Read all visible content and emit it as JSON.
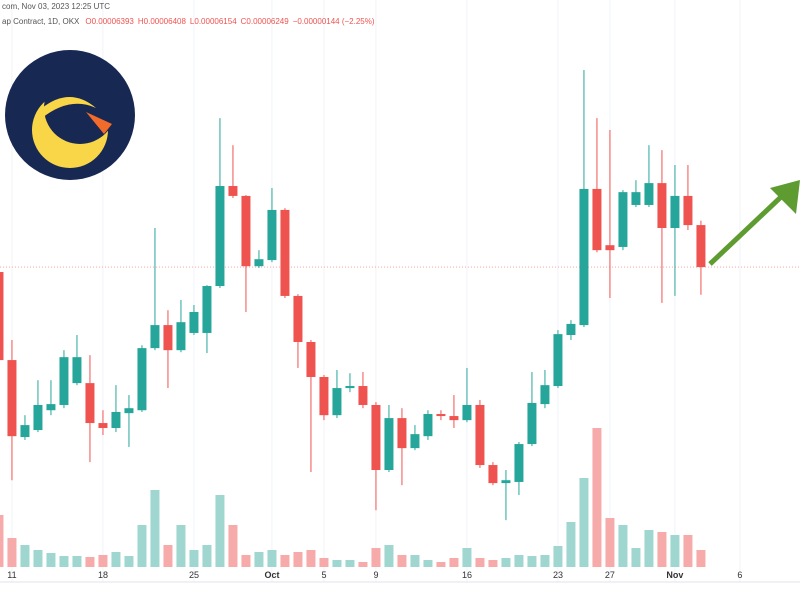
{
  "chart_data": {
    "type": "candlestick",
    "header_source": "com, Nov 03, 2023 12:25 UTC",
    "header_contract": "ap Contract, 1D, OKX",
    "header_ohlc": [
      "O0.00006393",
      "H0.00006408",
      "L0.00006154",
      "C0.00006249",
      "−0.00000144 (−2.25%)"
    ],
    "x": [
      0,
      1,
      2,
      3,
      4,
      5,
      6,
      7,
      8,
      9,
      10,
      11,
      12,
      13,
      14,
      15,
      16,
      17,
      18,
      19,
      20,
      21,
      22,
      23,
      24,
      25,
      26,
      27,
      28,
      29,
      30,
      31,
      32,
      33,
      34,
      35,
      36,
      37,
      38,
      39,
      40,
      41,
      42,
      43,
      44,
      45,
      46,
      47,
      48,
      49,
      50,
      51,
      52,
      53,
      54
    ],
    "open": [
      6.232e-05,
      5.93e-05,
      5.666e-05,
      5.69e-05,
      5.758e-05,
      5.776e-05,
      5.851e-05,
      5.851e-05,
      5.714e-05,
      5.697e-05,
      5.748e-05,
      5.758e-05,
      5.971e-05,
      6.05e-05,
      5.964e-05,
      6.023e-05,
      6.023e-05,
      6.184e-05,
      6.527e-05,
      6.493e-05,
      6.252e-05,
      6.273e-05,
      6.445e-05,
      6.15e-05,
      5.992e-05,
      5.872e-05,
      5.741e-05,
      5.834e-05,
      5.841e-05,
      5.776e-05,
      5.553e-05,
      5.731e-05,
      5.628e-05,
      5.669e-05,
      5.745e-05,
      5.738e-05,
      5.724e-05,
      5.776e-05,
      5.57e-05,
      5.508e-05,
      5.512e-05,
      5.642e-05,
      5.779e-05,
      5.841e-05,
      6.016e-05,
      6.05e-05,
      6.517e-05,
      6.324e-05,
      6.318e-05,
      6.462e-05,
      6.462e-05,
      6.537e-05,
      6.383e-05,
      6.493e-05,
      6.393e-05
    ],
    "high": [
      6.256e-05,
      5.999e-05,
      5.741e-05,
      5.861e-05,
      5.861e-05,
      5.964e-05,
      6.016e-05,
      5.947e-05,
      5.758e-05,
      5.844e-05,
      5.81e-05,
      5.981e-05,
      6.383e-05,
      6.101e-05,
      6.136e-05,
      6.119e-05,
      6.187e-05,
      6.76e-05,
      6.667e-05,
      6.496e-05,
      6.307e-05,
      6.52e-05,
      6.451e-05,
      6.156e-05,
      5.999e-05,
      5.879e-05,
      5.896e-05,
      5.885e-05,
      5.889e-05,
      5.786e-05,
      5.776e-05,
      5.765e-05,
      5.707e-05,
      5.758e-05,
      5.758e-05,
      5.81e-05,
      5.903e-05,
      5.793e-05,
      5.58e-05,
      5.553e-05,
      5.649e-05,
      5.889e-05,
      5.896e-05,
      6.033e-05,
      6.067e-05,
      6.925e-05,
      6.76e-05,
      6.719e-05,
      6.513e-05,
      6.547e-05,
      6.667e-05,
      6.65e-05,
      6.599e-05,
      6.599e-05,
      6.408e-05
    ],
    "low": [
      5.896e-05,
      5.518e-05,
      5.656e-05,
      5.683e-05,
      5.741e-05,
      5.765e-05,
      5.844e-05,
      5.58e-05,
      5.673e-05,
      5.683e-05,
      5.632e-05,
      5.752e-05,
      5.964e-05,
      5.834e-05,
      5.957e-05,
      6.016e-05,
      5.954e-05,
      6.177e-05,
      6.486e-05,
      6.095e-05,
      6.246e-05,
      6.266e-05,
      6.143e-05,
      5.903e-05,
      5.546e-05,
      5.724e-05,
      5.731e-05,
      5.82e-05,
      5.765e-05,
      5.415e-05,
      5.546e-05,
      5.501e-05,
      5.621e-05,
      5.656e-05,
      5.724e-05,
      5.697e-05,
      5.717e-05,
      5.56e-05,
      5.501e-05,
      5.381e-05,
      5.467e-05,
      5.635e-05,
      5.765e-05,
      5.834e-05,
      5.999e-05,
      6.043e-05,
      6.3e-05,
      6.143e-05,
      6.307e-05,
      6.455e-05,
      6.455e-05,
      6.126e-05,
      6.15e-05,
      6.376e-05,
      6.154e-05
    ],
    "close": [
      5.93e-05,
      5.669e-05,
      5.707e-05,
      5.776e-05,
      5.779e-05,
      5.94e-05,
      5.94e-05,
      5.714e-05,
      5.697e-05,
      5.752e-05,
      5.765e-05,
      5.971e-05,
      6.05e-05,
      5.964e-05,
      6.06e-05,
      6.095e-05,
      6.184e-05,
      6.527e-05,
      6.493e-05,
      6.252e-05,
      6.276e-05,
      6.445e-05,
      6.15e-05,
      5.992e-05,
      5.872e-05,
      5.741e-05,
      5.834e-05,
      5.841e-05,
      5.776e-05,
      5.553e-05,
      5.731e-05,
      5.628e-05,
      5.676e-05,
      5.745e-05,
      5.738e-05,
      5.724e-05,
      5.776e-05,
      5.57e-05,
      5.508e-05,
      5.518e-05,
      5.642e-05,
      5.783e-05,
      5.844e-05,
      6.019e-05,
      6.054e-05,
      6.517e-05,
      6.307e-05,
      6.307e-05,
      6.506e-05,
      6.506e-05,
      6.537e-05,
      6.383e-05,
      6.493e-05,
      6.393e-05,
      6.249e-05
    ],
    "volume": [
      52,
      29,
      22,
      17,
      14,
      11,
      11,
      10,
      12,
      15,
      11,
      42,
      77,
      22,
      42,
      17,
      22,
      72,
      42,
      12,
      15,
      17,
      12,
      15,
      17,
      9,
      7,
      7,
      5,
      19,
      22,
      12,
      12,
      7,
      5,
      9,
      19,
      9,
      7,
      9,
      12,
      11,
      12,
      21,
      45,
      89,
      139,
      49,
      42,
      19,
      37,
      35,
      32,
      32,
      17
    ],
    "ylim": [
      5.21e-05,
      7.165e-05
    ],
    "volume_lim": [
      0,
      200
    ],
    "xlim": [
      0.08,
      61.62
    ],
    "xticks": [
      {
        "value": 1,
        "label": "11"
      },
      {
        "value": 8,
        "label": "18"
      },
      {
        "value": 15,
        "label": "25"
      },
      {
        "value": 21,
        "label": "Oct"
      },
      {
        "value": 25,
        "label": "5"
      },
      {
        "value": 29,
        "label": "9"
      },
      {
        "value": 36,
        "label": "16"
      },
      {
        "value": 43,
        "label": "23"
      },
      {
        "value": 47,
        "label": "27"
      },
      {
        "value": 52,
        "label": "Nov"
      },
      {
        "value": 57,
        "label": "6"
      }
    ],
    "up_color": "#26a69a",
    "down_color": "#ef5350",
    "up_volume_color": "#9fd6cf",
    "down_volume_color": "#f6aaa9",
    "grid": true
  }
}
